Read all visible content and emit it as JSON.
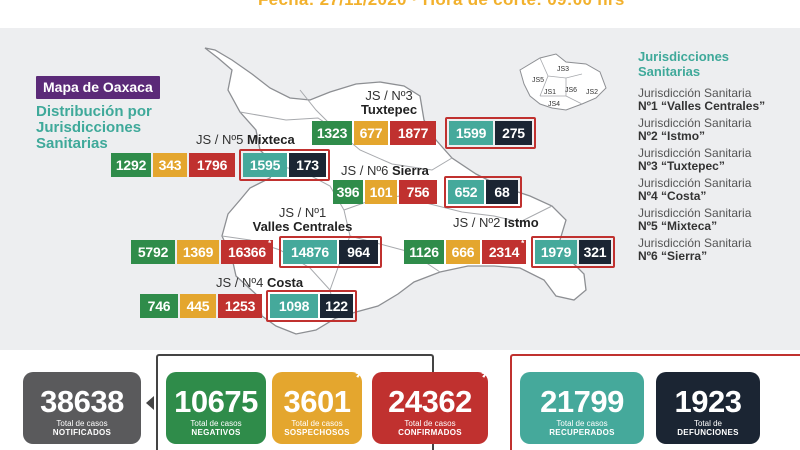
{
  "header": {
    "faded_text": "Fecha: 27/11/2020 · Hora de corte: 09:00 hrs"
  },
  "map": {
    "title": "Mapa de Oaxaca",
    "subtitle": "Distribución por Jurisdicciones Sanitarias"
  },
  "jurisdictions": [
    {
      "label_prefix": "JS / Nº3",
      "label_name": "Tuxtepec",
      "neg": "1323",
      "sos": "677",
      "conf": "1877",
      "rec": "1599",
      "def": "275"
    },
    {
      "label_prefix": "JS / Nº5",
      "label_name": "Mixteca",
      "neg": "1292",
      "sos": "343",
      "conf": "1796",
      "rec": "1595",
      "def": "173"
    },
    {
      "label_prefix": "JS / Nº6",
      "label_name": "Sierra",
      "neg": "396",
      "sos": "101",
      "conf": "756",
      "rec": "652",
      "def": "68"
    },
    {
      "label_prefix": "JS / Nº1",
      "label_name": "Valles Centrales",
      "neg": "5792",
      "sos": "1369",
      "conf": "16366",
      "rec": "14876",
      "def": "964"
    },
    {
      "label_prefix": "JS / Nº2",
      "label_name": "Istmo",
      "neg": "1126",
      "sos": "666",
      "conf": "2314",
      "rec": "1979",
      "def": "321"
    },
    {
      "label_prefix": "JS / Nº4",
      "label_name": "Costa",
      "neg": "746",
      "sos": "445",
      "conf": "1253",
      "rec": "1098",
      "def": "122"
    }
  ],
  "minimap": {
    "labels": [
      "JS5",
      "JS3",
      "JS1",
      "JS6",
      "JS2",
      "JS4"
    ]
  },
  "legend": {
    "title": "Jurisdicciones Sanitarias",
    "items": [
      {
        "line1": "Jurisdicción Sanitaria",
        "line2": "Nº1 “Valles Centrales”"
      },
      {
        "line1": "Jurisdicción Sanitaria",
        "line2": "Nº2 “Istmo”"
      },
      {
        "line1": "Jurisdicción Sanitaria",
        "line2": "Nº3 “Tuxtepec”"
      },
      {
        "line1": "Jurisdicción Sanitaria",
        "line2": "Nº4 “Costa”"
      },
      {
        "line1": "Jurisdicción Sanitaria",
        "line2": "Nº5 “Mixteca”"
      },
      {
        "line1": "Jurisdicción Sanitaria",
        "line2": "Nº6 “Sierra”"
      }
    ]
  },
  "totals": [
    {
      "value": "38638",
      "l1": "Total de casos",
      "l2": "NOTIFICADOS",
      "color": "#5a5a5c"
    },
    {
      "value": "10675",
      "l1": "Total de casos",
      "l2": "NEGATIVOS",
      "color": "#2f8c4a"
    },
    {
      "value": "3601",
      "l1": "Total de casos",
      "l2": "SOSPECHOSOS",
      "color": "#e4a62e"
    },
    {
      "value": "24362",
      "l1": "Total de casos",
      "l2": "CONFIRMADOS",
      "color": "#c0312f"
    },
    {
      "value": "21799",
      "l1": "Total de casos",
      "l2": "RECUPERADOS",
      "color": "#45a99b"
    },
    {
      "value": "1923",
      "l1": "Total de",
      "l2": "DEFUNCIONES",
      "color": "#1b2533"
    }
  ],
  "asterisk": "*",
  "colors": {
    "negativos": "#2f8c4a",
    "sospechosos": "#e4a62e",
    "confirmados": "#c0312f",
    "recuperados": "#45a99b",
    "defunciones": "#1b2533",
    "accent": "#3fa99a",
    "title_bg": "#5b2a78"
  }
}
